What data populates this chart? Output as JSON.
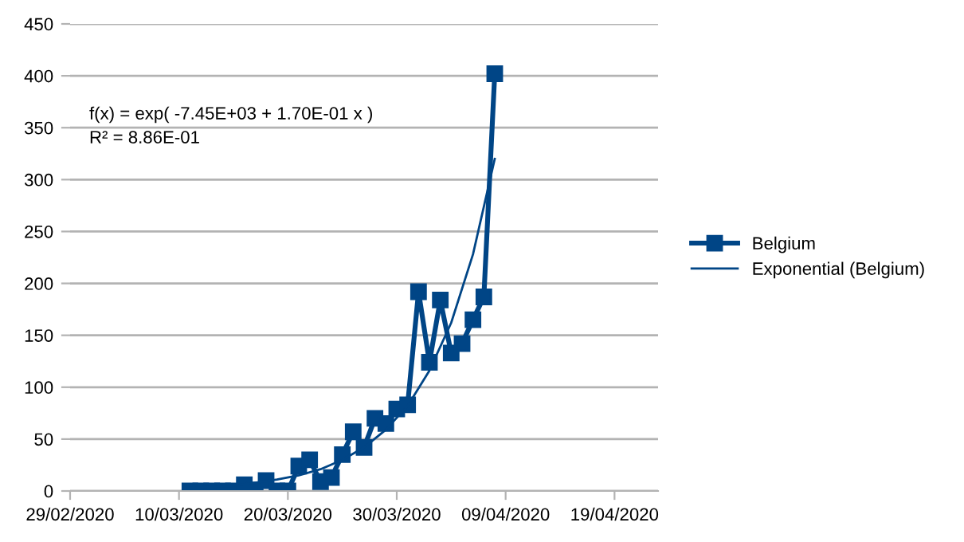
{
  "chart_data": {
    "type": "line",
    "xlim": [
      "2020-02-29",
      "2020-04-23"
    ],
    "xticks": [
      {
        "value": "2020-02-29",
        "label": "29/02/2020"
      },
      {
        "value": "2020-03-10",
        "label": "10/03/2020"
      },
      {
        "value": "2020-03-20",
        "label": "20/03/2020"
      },
      {
        "value": "2020-03-30",
        "label": "30/03/2020"
      },
      {
        "value": "2020-04-09",
        "label": "09/04/2020"
      },
      {
        "value": "2020-04-19",
        "label": "19/04/2020"
      }
    ],
    "ylim": [
      0,
      450
    ],
    "yticks": [
      0,
      50,
      100,
      150,
      200,
      250,
      300,
      350,
      400,
      450
    ],
    "grid": "y",
    "legend": "right",
    "annotations": [
      "f(x) = exp( -7.45E+03 + 1.70E-01 x )",
      "R² = 8.86E-01"
    ],
    "series": [
      {
        "name": "Belgium",
        "color": "#004586",
        "marker": "square",
        "x": [
          "2020-03-11",
          "2020-03-12",
          "2020-03-13",
          "2020-03-14",
          "2020-03-15",
          "2020-03-16",
          "2020-03-17",
          "2020-03-18",
          "2020-03-19",
          "2020-03-20",
          "2020-03-21",
          "2020-03-22",
          "2020-03-23",
          "2020-03-24",
          "2020-03-25",
          "2020-03-26",
          "2020-03-27",
          "2020-03-28",
          "2020-03-29",
          "2020-03-30",
          "2020-03-31",
          "2020-04-01",
          "2020-04-02",
          "2020-04-03",
          "2020-04-04",
          "2020-04-05",
          "2020-04-06",
          "2020-04-07",
          "2020-04-08"
        ],
        "values": [
          0,
          0,
          0,
          0,
          0,
          6,
          1,
          10,
          0,
          0,
          24,
          30,
          9,
          13,
          35,
          57,
          42,
          70,
          65,
          79,
          83,
          192,
          124,
          184,
          133,
          142,
          165,
          187,
          402
        ]
      },
      {
        "name": "Exponential (Belgium)",
        "color": "#004586",
        "marker": "none",
        "x": [
          "2020-03-11",
          "2020-03-13",
          "2020-03-15",
          "2020-03-17",
          "2020-03-19",
          "2020-03-21",
          "2020-03-23",
          "2020-03-25",
          "2020-03-27",
          "2020-03-29",
          "2020-03-31",
          "2020-04-02",
          "2020-04-04",
          "2020-04-06",
          "2020-04-08"
        ],
        "values": [
          3,
          4,
          5,
          8,
          11,
          15,
          21,
          30,
          42,
          59,
          82,
          116,
          162,
          228,
          320
        ]
      }
    ]
  }
}
